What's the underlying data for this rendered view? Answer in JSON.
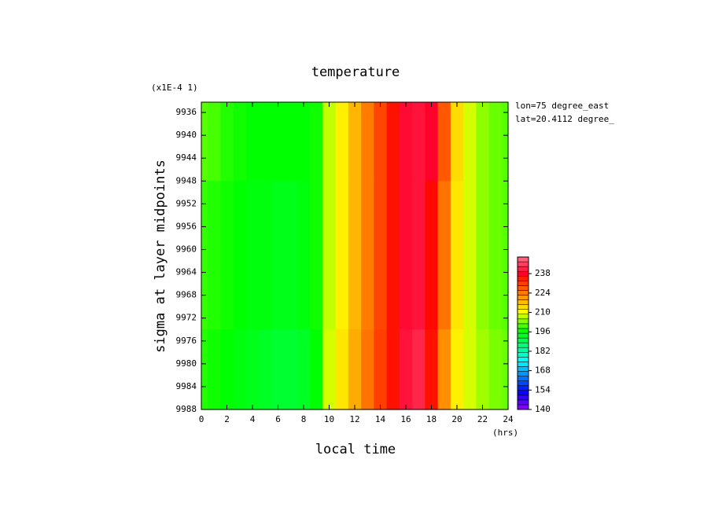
{
  "chart_data": {
    "type": "heatmap",
    "title": "temperature",
    "x_label": "local time",
    "x_unit": "(hrs)",
    "y_label": "sigma at layer midpoints",
    "y_scale_label": "(x1E-4 1)",
    "annotations": [
      "lon=75 degree_east",
      "lat=20.4112 degree_"
    ],
    "x": [
      0,
      1,
      2,
      3,
      4,
      5,
      6,
      7,
      8,
      9,
      10,
      11,
      12,
      13,
      14,
      15,
      16,
      17,
      18,
      19,
      20,
      21,
      22,
      23,
      24
    ],
    "y": [
      9936,
      9960,
      9988
    ],
    "z": [
      [
        201,
        200,
        198,
        197,
        196,
        196,
        196,
        196,
        196,
        197,
        207,
        212,
        218,
        224,
        230,
        236,
        239,
        240,
        238,
        228,
        214,
        208,
        204,
        202,
        201
      ],
      [
        199,
        198,
        197,
        196,
        195,
        195,
        194,
        194,
        195,
        197,
        207,
        212,
        218,
        224,
        230,
        236,
        239,
        240,
        237,
        225,
        213,
        208,
        204,
        202,
        201
      ],
      [
        198,
        197,
        196,
        195,
        194,
        193,
        192,
        192,
        193,
        196,
        208,
        213,
        219,
        225,
        231,
        236,
        240,
        242,
        236,
        222,
        212,
        208,
        205,
        203,
        202
      ]
    ],
    "xlim": [
      0,
      24
    ],
    "xticks": [
      0,
      2,
      4,
      6,
      8,
      10,
      12,
      14,
      16,
      18,
      20,
      22,
      24
    ],
    "ylim": [
      9934.2,
      9988
    ],
    "y_inverted": true,
    "yticks": [
      9936,
      9940,
      9944,
      9948,
      9952,
      9956,
      9960,
      9964,
      9968,
      9972,
      9976,
      9980,
      9984,
      9988
    ],
    "clim": [
      140,
      250
    ],
    "cticks": [
      140,
      154,
      168,
      182,
      196,
      210,
      224,
      238
    ]
  }
}
